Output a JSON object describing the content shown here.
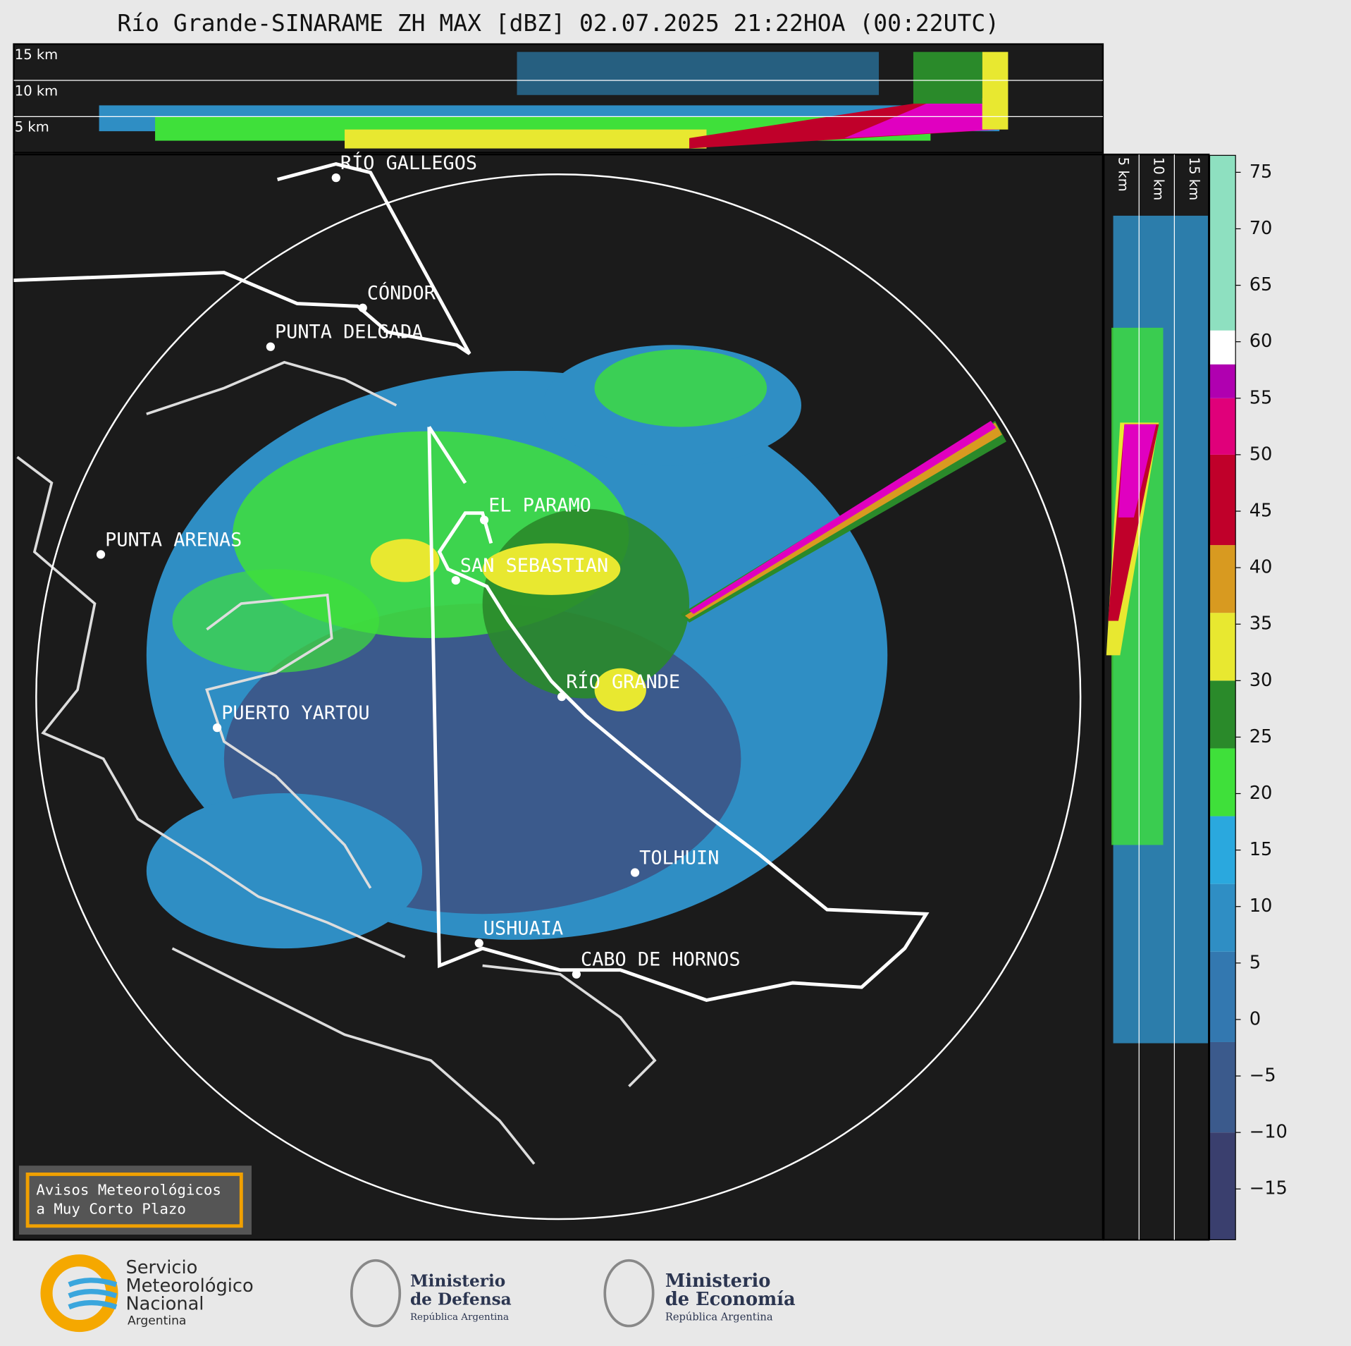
{
  "title": "Río Grande-SINARAME ZH MAX [dBZ] 02.07.2025 21:22HOA (00:22UTC)",
  "top_panel": {
    "height_labels": [
      "15 km",
      "10 km",
      "5 km"
    ]
  },
  "side_panel": {
    "height_labels": [
      "5 km",
      "10 km",
      "15 km"
    ]
  },
  "cities": [
    "RÍO GALLEGOS",
    "CÓNDOR",
    "PUNTA DELGADA",
    "EL PARAMO",
    "PUNTA ARENAS",
    "SAN SEBASTIAN",
    "RÍO GRANDE",
    "PUERTO YARTOU",
    "TOLHUIN",
    "USHUAIA",
    "CABO DE HORNOS"
  ],
  "colorbar": {
    "lim": [
      -19.5,
      76.5
    ],
    "ticks": [
      75,
      70,
      65,
      60,
      55,
      50,
      45,
      40,
      35,
      30,
      25,
      20,
      15,
      10,
      5,
      0,
      {
        "value": -5,
        "label": "−5"
      },
      {
        "value": -10,
        "label": "−10"
      },
      {
        "value": -15,
        "label": "−15"
      }
    ],
    "bands": [
      {
        "from": -19.5,
        "to": -10,
        "color": "#3a3f6e"
      },
      {
        "from": -10,
        "to": -2,
        "color": "#3b5a8c"
      },
      {
        "from": -2,
        "to": 6,
        "color": "#3378b0"
      },
      {
        "from": 6,
        "to": 12,
        "color": "#2f8ec4"
      },
      {
        "from": 12,
        "to": 18,
        "color": "#2aa8de"
      },
      {
        "from": 18,
        "to": 24,
        "color": "#3fe03a"
      },
      {
        "from": 24,
        "to": 30,
        "color": "#2a8a2a"
      },
      {
        "from": 30,
        "to": 36,
        "color": "#e8e830"
      },
      {
        "from": 36,
        "to": 42,
        "color": "#d89a20"
      },
      {
        "from": 42,
        "to": 50,
        "color": "#c0002a"
      },
      {
        "from": 50,
        "to": 55,
        "color": "#e0007a"
      },
      {
        "from": 55,
        "to": 58,
        "color": "#b000b0"
      },
      {
        "from": 58,
        "to": 61,
        "color": "#ffffff"
      },
      {
        "from": 61,
        "to": 76.5,
        "color": "#8ee0c0"
      }
    ]
  },
  "notice": {
    "lines": [
      "Avisos Meteorológicos",
      "a Muy Corto Plazo"
    ]
  },
  "logos": {
    "smn": [
      "Servicio",
      "Meteorológico",
      "Nacional",
      "Argentina"
    ],
    "defensa": [
      "Ministerio",
      "de Defensa",
      "República Argentina"
    ],
    "economia": [
      "Ministerio",
      "de Economía",
      "República Argentina"
    ]
  }
}
